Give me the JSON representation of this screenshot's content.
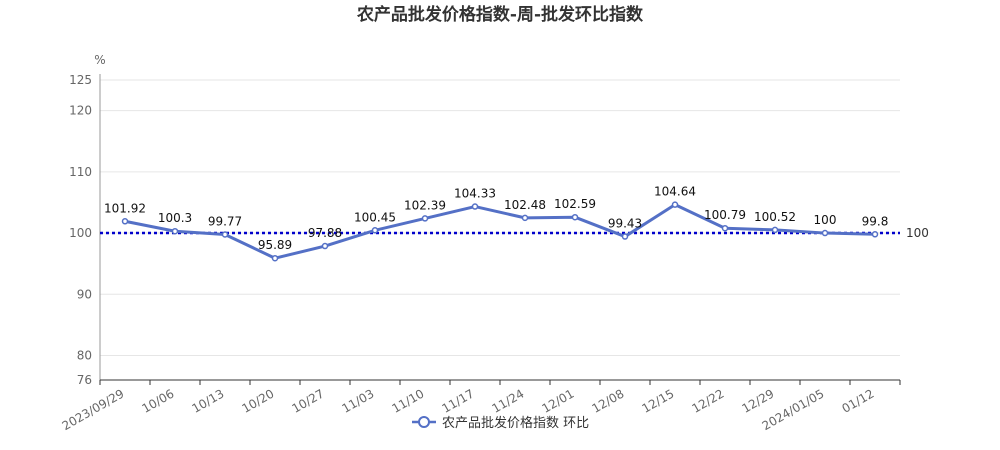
{
  "chart_data": {
    "type": "line",
    "title": "农产品批发价格指数-周-批发环比指数",
    "ylabel": "%",
    "xlabel": "",
    "ylim": [
      76,
      125
    ],
    "yticks": [
      76,
      80,
      90,
      100,
      110,
      120,
      125
    ],
    "grid": true,
    "legend_position": "bottom-center",
    "categories": [
      "2023/09/29",
      "10/06",
      "10/13",
      "10/20",
      "10/27",
      "11/03",
      "11/10",
      "11/17",
      "11/24",
      "12/01",
      "12/08",
      "12/15",
      "12/22",
      "12/29",
      "2024/01/05",
      "01/12"
    ],
    "series": [
      {
        "name": "农产品批发价格指数 环比",
        "values": [
          101.92,
          100.3,
          99.77,
          95.89,
          97.88,
          100.45,
          102.39,
          104.33,
          102.48,
          102.59,
          99.43,
          104.64,
          100.79,
          100.52,
          100,
          99.8
        ],
        "labels": [
          "101.92",
          "100.3",
          "99.77",
          "95.89",
          "97.88",
          "100.45",
          "102.39",
          "104.33",
          "102.48",
          "102.59",
          "99.43",
          "104.64",
          "100.79",
          "100.52",
          "100",
          "99.8"
        ],
        "color": "#5470c6"
      }
    ],
    "reference_line": {
      "value": 100,
      "label": "100",
      "color": "#0000cc",
      "style": "dotted"
    }
  }
}
